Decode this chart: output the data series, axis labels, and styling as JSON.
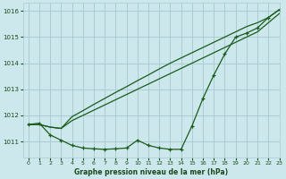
{
  "background_color": "#cce8ec",
  "grid_color": "#aaccd4",
  "line_color": "#1a5c1a",
  "title": "Graphe pression niveau de la mer (hPa)",
  "xlim": [
    -0.5,
    23
  ],
  "ylim": [
    1010.4,
    1016.3
  ],
  "yticks": [
    1011,
    1012,
    1013,
    1014,
    1015,
    1016
  ],
  "xticks": [
    0,
    1,
    2,
    3,
    4,
    5,
    6,
    7,
    8,
    9,
    10,
    11,
    12,
    13,
    14,
    15,
    16,
    17,
    18,
    19,
    20,
    21,
    22,
    23
  ],
  "series_marker": [
    1011.65,
    1011.7,
    1011.25,
    1011.05,
    1010.85,
    1010.75,
    1010.72,
    1010.7,
    1010.72,
    1010.75,
    1011.05,
    1010.85,
    1010.75,
    1010.7,
    1010.7,
    1011.6,
    1012.65,
    1013.55,
    1014.35,
    1015.0,
    1015.15,
    1015.35,
    1015.75,
    1016.05
  ],
  "series_line1": [
    1011.65,
    1011.65,
    1011.55,
    1011.5,
    1011.8,
    1012.0,
    1012.2,
    1012.4,
    1012.6,
    1012.8,
    1013.0,
    1013.2,
    1013.4,
    1013.6,
    1013.8,
    1014.0,
    1014.2,
    1014.4,
    1014.6,
    1014.8,
    1015.0,
    1015.2,
    1015.55,
    1015.9
  ],
  "series_line2": [
    1011.65,
    1011.65,
    1011.55,
    1011.5,
    1011.95,
    1012.18,
    1012.42,
    1012.65,
    1012.88,
    1013.1,
    1013.33,
    1013.55,
    1013.78,
    1014.0,
    1014.2,
    1014.4,
    1014.6,
    1014.8,
    1015.0,
    1015.2,
    1015.4,
    1015.55,
    1015.75,
    1016.05
  ]
}
